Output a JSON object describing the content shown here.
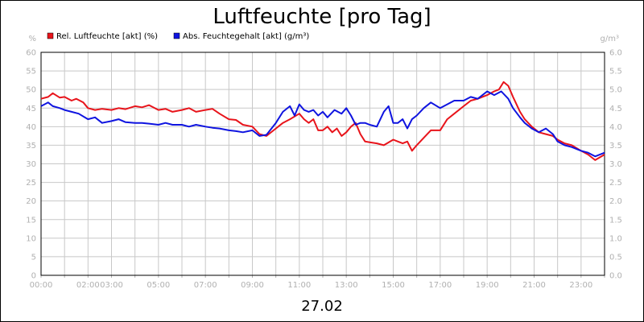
{
  "chart_data": {
    "type": "line",
    "title": "Luftfeuchte [pro Tag]",
    "date_label": "27.02",
    "left_unit": "%",
    "right_unit": "g/m³",
    "ylim_left": [
      0,
      60
    ],
    "ylim_right": [
      0.0,
      6.0
    ],
    "y_ticks_left": [
      "0",
      "5",
      "10",
      "15",
      "20",
      "25",
      "30",
      "35",
      "40",
      "45",
      "50",
      "55",
      "60"
    ],
    "y_ticks_right": [
      "0.0",
      "0.5",
      "1.0",
      "1.5",
      "2.0",
      "2.5",
      "3.0",
      "3.5",
      "4.0",
      "4.5",
      "5.0",
      "5.5",
      "6.0"
    ],
    "xlim_hours": [
      0,
      24
    ],
    "x_ticks": [
      "00:00",
      "02:00",
      "03:00",
      "05:00",
      "07:00",
      "09:00",
      "11:00",
      "13:00",
      "15:00",
      "17:00",
      "19:00",
      "21:00",
      "23:00"
    ],
    "grid": true,
    "legend_position": "top-left",
    "series": [
      {
        "name": "Rel. Luftfeuchte [akt] (%)",
        "color": "#e8141b",
        "axis": "left",
        "points": [
          [
            0,
            47.5
          ],
          [
            0.3,
            48
          ],
          [
            0.5,
            49
          ],
          [
            0.8,
            47.8
          ],
          [
            1,
            48
          ],
          [
            1.3,
            47
          ],
          [
            1.5,
            47.5
          ],
          [
            1.8,
            46.5
          ],
          [
            2,
            45
          ],
          [
            2.3,
            44.5
          ],
          [
            2.6,
            44.8
          ],
          [
            3,
            44.5
          ],
          [
            3.3,
            45
          ],
          [
            3.6,
            44.7
          ],
          [
            4,
            45.5
          ],
          [
            4.3,
            45.2
          ],
          [
            4.6,
            45.8
          ],
          [
            5,
            44.5
          ],
          [
            5.3,
            44.8
          ],
          [
            5.6,
            44
          ],
          [
            6,
            44.5
          ],
          [
            6.3,
            45
          ],
          [
            6.6,
            44
          ],
          [
            7,
            44.5
          ],
          [
            7.3,
            44.8
          ],
          [
            7.6,
            43.5
          ],
          [
            8,
            42
          ],
          [
            8.3,
            41.8
          ],
          [
            8.6,
            40.5
          ],
          [
            9,
            40
          ],
          [
            9.3,
            38
          ],
          [
            9.6,
            37.5
          ],
          [
            10,
            39.5
          ],
          [
            10.3,
            41
          ],
          [
            10.6,
            42
          ],
          [
            11,
            43.5
          ],
          [
            11.2,
            42
          ],
          [
            11.4,
            41
          ],
          [
            11.6,
            42
          ],
          [
            11.8,
            39
          ],
          [
            12,
            39
          ],
          [
            12.2,
            40
          ],
          [
            12.4,
            38.5
          ],
          [
            12.6,
            39.5
          ],
          [
            12.8,
            37.5
          ],
          [
            13,
            38.5
          ],
          [
            13.2,
            40
          ],
          [
            13.4,
            41
          ],
          [
            13.6,
            38
          ],
          [
            13.8,
            36
          ],
          [
            14,
            35.8
          ],
          [
            14.3,
            35.5
          ],
          [
            14.6,
            35
          ],
          [
            15,
            36.5
          ],
          [
            15.2,
            36
          ],
          [
            15.4,
            35.5
          ],
          [
            15.6,
            36
          ],
          [
            15.8,
            33.5
          ],
          [
            16,
            35
          ],
          [
            16.3,
            37
          ],
          [
            16.6,
            39
          ],
          [
            17,
            39
          ],
          [
            17.3,
            42
          ],
          [
            17.6,
            43.5
          ],
          [
            18,
            45.5
          ],
          [
            18.3,
            47
          ],
          [
            18.6,
            47.5
          ],
          [
            19,
            48.5
          ],
          [
            19.3,
            49.5
          ],
          [
            19.5,
            50
          ],
          [
            19.7,
            52
          ],
          [
            19.9,
            51
          ],
          [
            20.1,
            48
          ],
          [
            20.4,
            44
          ],
          [
            20.6,
            42
          ],
          [
            20.9,
            40
          ],
          [
            21.2,
            38.5
          ],
          [
            21.5,
            38
          ],
          [
            21.8,
            37.5
          ],
          [
            22,
            36.5
          ],
          [
            22.3,
            35.5
          ],
          [
            22.6,
            35
          ],
          [
            23,
            33.5
          ],
          [
            23.3,
            32.5
          ],
          [
            23.6,
            31
          ],
          [
            24,
            32.5
          ]
        ]
      },
      {
        "name": "Abs. Feuchtegehalt [akt] (g/m³)",
        "color": "#0f14e0",
        "axis": "right",
        "points": [
          [
            0,
            4.55
          ],
          [
            0.3,
            4.65
          ],
          [
            0.5,
            4.55
          ],
          [
            0.8,
            4.5
          ],
          [
            1,
            4.45
          ],
          [
            1.3,
            4.4
          ],
          [
            1.6,
            4.35
          ],
          [
            2,
            4.2
          ],
          [
            2.3,
            4.25
          ],
          [
            2.6,
            4.1
          ],
          [
            3,
            4.15
          ],
          [
            3.3,
            4.2
          ],
          [
            3.6,
            4.12
          ],
          [
            4,
            4.1
          ],
          [
            4.3,
            4.1
          ],
          [
            4.6,
            4.08
          ],
          [
            5,
            4.05
          ],
          [
            5.3,
            4.1
          ],
          [
            5.6,
            4.05
          ],
          [
            6,
            4.05
          ],
          [
            6.3,
            4.0
          ],
          [
            6.6,
            4.05
          ],
          [
            7,
            4.0
          ],
          [
            7.3,
            3.97
          ],
          [
            7.6,
            3.95
          ],
          [
            8,
            3.9
          ],
          [
            8.3,
            3.88
          ],
          [
            8.6,
            3.85
          ],
          [
            9,
            3.9
          ],
          [
            9.3,
            3.75
          ],
          [
            9.6,
            3.78
          ],
          [
            10,
            4.1
          ],
          [
            10.3,
            4.4
          ],
          [
            10.6,
            4.55
          ],
          [
            10.8,
            4.3
          ],
          [
            11,
            4.6
          ],
          [
            11.2,
            4.45
          ],
          [
            11.4,
            4.4
          ],
          [
            11.6,
            4.45
          ],
          [
            11.8,
            4.3
          ],
          [
            12,
            4.4
          ],
          [
            12.2,
            4.25
          ],
          [
            12.5,
            4.45
          ],
          [
            12.8,
            4.35
          ],
          [
            13,
            4.5
          ],
          [
            13.2,
            4.3
          ],
          [
            13.4,
            4.05
          ],
          [
            13.6,
            4.1
          ],
          [
            13.8,
            4.1
          ],
          [
            14,
            4.05
          ],
          [
            14.3,
            4.0
          ],
          [
            14.6,
            4.4
          ],
          [
            14.8,
            4.55
          ],
          [
            15,
            4.1
          ],
          [
            15.2,
            4.1
          ],
          [
            15.4,
            4.2
          ],
          [
            15.6,
            3.95
          ],
          [
            15.8,
            4.2
          ],
          [
            16,
            4.3
          ],
          [
            16.3,
            4.5
          ],
          [
            16.6,
            4.65
          ],
          [
            17,
            4.5
          ],
          [
            17.3,
            4.6
          ],
          [
            17.6,
            4.7
          ],
          [
            18,
            4.7
          ],
          [
            18.3,
            4.8
          ],
          [
            18.6,
            4.75
          ],
          [
            19,
            4.95
          ],
          [
            19.3,
            4.85
          ],
          [
            19.6,
            4.95
          ],
          [
            19.9,
            4.75
          ],
          [
            20.1,
            4.5
          ],
          [
            20.4,
            4.25
          ],
          [
            20.6,
            4.1
          ],
          [
            20.9,
            3.95
          ],
          [
            21.2,
            3.85
          ],
          [
            21.5,
            3.95
          ],
          [
            21.8,
            3.8
          ],
          [
            22,
            3.6
          ],
          [
            22.3,
            3.5
          ],
          [
            22.6,
            3.45
          ],
          [
            23,
            3.35
          ],
          [
            23.3,
            3.3
          ],
          [
            23.6,
            3.2
          ],
          [
            24,
            3.3
          ]
        ]
      }
    ]
  }
}
